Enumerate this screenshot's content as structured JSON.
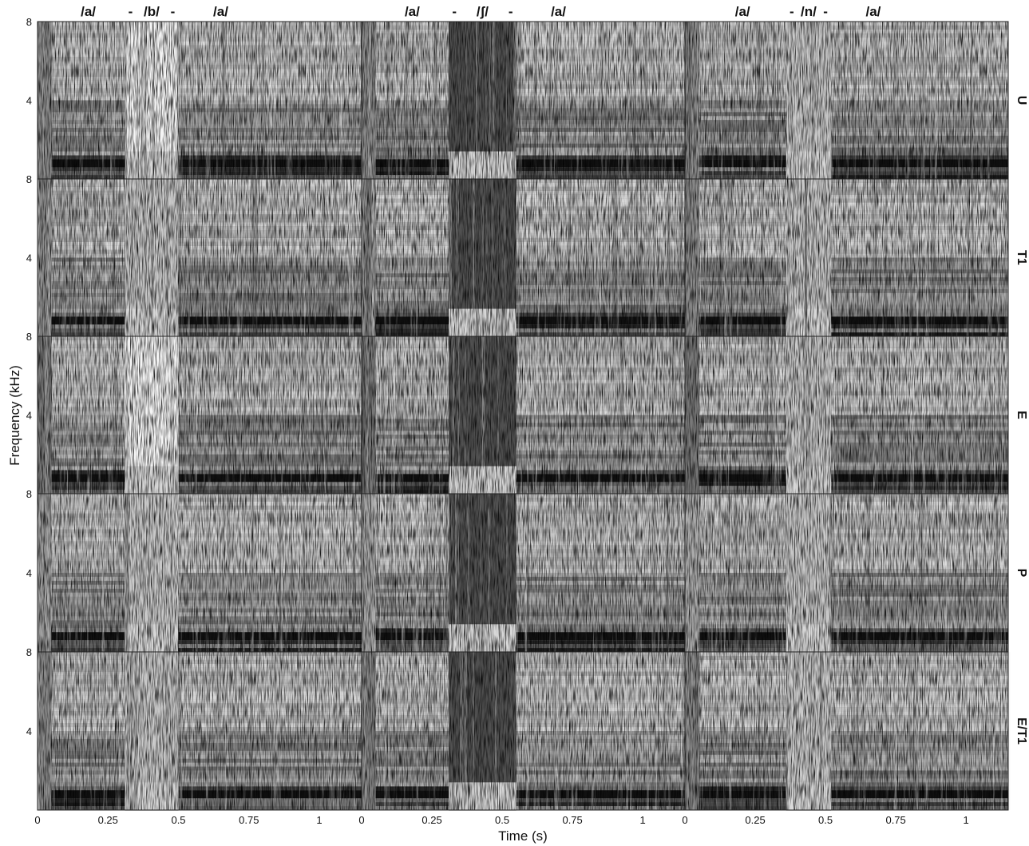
{
  "chart_data": {
    "type": "heatmap",
    "ylabel": "Frequency (kHz)",
    "xlabel": "Time (s)",
    "colormap": "grayscale (dark = high energy)",
    "rows": [
      "U",
      "T1",
      "E",
      "P",
      "E/T1"
    ],
    "y_ticks": [
      "8",
      "4"
    ],
    "x_ticks": [
      "0",
      "0.25",
      "0.5",
      "0.75",
      "1"
    ],
    "ylim_khz": [
      0,
      8
    ],
    "xlim_s": [
      0,
      1.15
    ],
    "columns": [
      {
        "phonemes": [
          "/a/",
          "-",
          "/b/",
          "-",
          "/a/"
        ],
        "segments_s": [
          [
            0.05,
            0.31
          ],
          [
            0.5,
            1.15
          ]
        ]
      },
      {
        "phonemes": [
          "/a/",
          "-",
          "/ʃ/",
          "-",
          "/a/"
        ],
        "segments_s": [
          [
            0.05,
            0.31
          ],
          [
            0.55,
            1.15
          ]
        ]
      },
      {
        "phonemes": [
          "/a/",
          "-",
          "/n/",
          "-",
          "/a/"
        ],
        "segments_s": [
          [
            0.05,
            0.36
          ],
          [
            0.52,
            1.15
          ]
        ]
      }
    ]
  }
}
